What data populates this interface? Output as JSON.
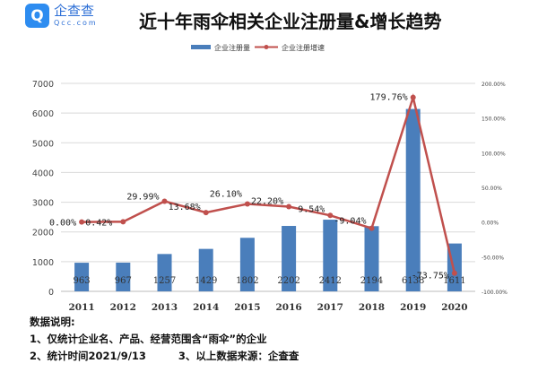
{
  "logo": {
    "icon": "qcc-logo-icon",
    "cn": "企查查",
    "en": "Qcc.com"
  },
  "chart_data": {
    "type": "bar+line",
    "title": "近十年雨伞相关企业注册量&增长趋势",
    "categories": [
      "2011",
      "2012",
      "2013",
      "2014",
      "2015",
      "2016",
      "2017",
      "2018",
      "2019",
      "2020"
    ],
    "series": [
      {
        "name": "企业注册量",
        "type": "bar",
        "axis": "left",
        "color": "#4a7ebb",
        "values": [
          963,
          967,
          1257,
          1429,
          1802,
          2202,
          2412,
          2194,
          6138,
          1611
        ],
        "labels": [
          "963",
          "967",
          "1257",
          "1429",
          "1802",
          "2202",
          "2412",
          "2194",
          "6138",
          "1611"
        ]
      },
      {
        "name": "企业注册增速",
        "type": "line",
        "axis": "right",
        "color": "#c0504d",
        "values": [
          0.0,
          0.42,
          29.99,
          13.68,
          26.1,
          22.2,
          9.54,
          -9.04,
          179.76,
          -73.75
        ],
        "labels": [
          "0.00%",
          "0.42%",
          "29.99%",
          "13.68%",
          "26.10%",
          "22.20%",
          "9.54%",
          "-9.04%",
          "179.76%",
          "-73.75%"
        ]
      }
    ],
    "left_axis": {
      "ylim": [
        0,
        7000
      ],
      "ticks": [
        "0",
        "1000",
        "2000",
        "3000",
        "4000",
        "5000",
        "6000",
        "7000"
      ]
    },
    "right_axis": {
      "ylim": [
        -100,
        200
      ],
      "ticks": [
        "-100.00%",
        "-50.00%",
        "0.00%",
        "50.00%",
        "100.00%",
        "150.00%",
        "200.00%"
      ]
    },
    "grid": true,
    "legend": "top-center"
  },
  "notes": {
    "heading": "数据说明:",
    "line1": "1、仅统计企业名、产品、经营范围含“雨伞”的企业",
    "line2a": "2、统计时间2021/9/13",
    "line2b": "3、以上数据来源：企查查"
  }
}
